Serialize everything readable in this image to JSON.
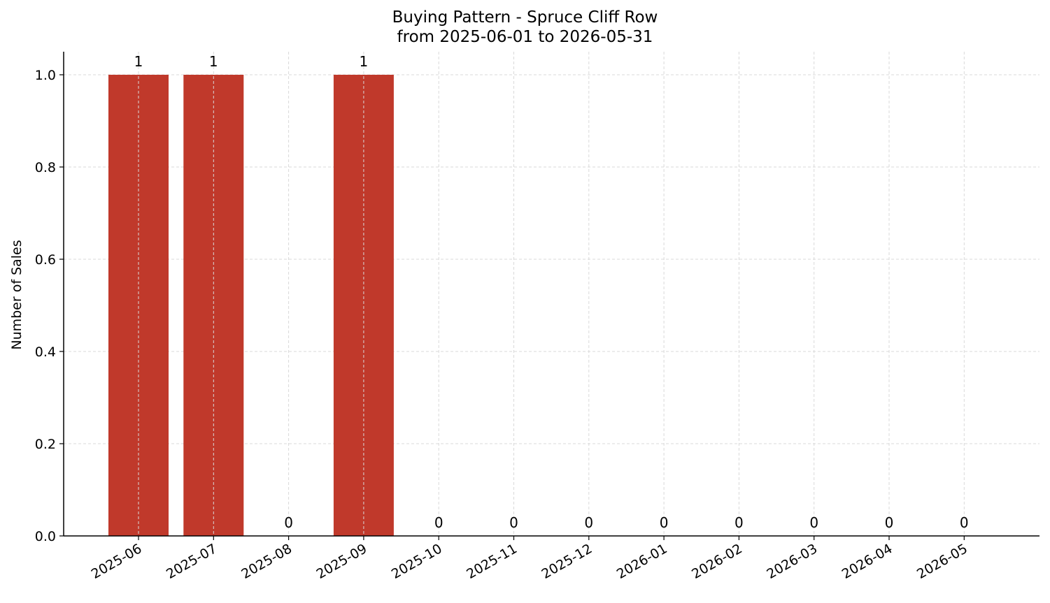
{
  "chart_data": {
    "type": "bar",
    "title": "Buying Pattern - Spruce Cliff Row",
    "subtitle": "from 2025-06-01 to 2026-05-31",
    "xlabel": "",
    "ylabel": "Number of Sales",
    "categories": [
      "2025-06",
      "2025-07",
      "2025-08",
      "2025-09",
      "2025-10",
      "2025-11",
      "2025-12",
      "2026-01",
      "2026-02",
      "2026-03",
      "2026-04",
      "2026-05"
    ],
    "values": [
      1,
      1,
      0,
      1,
      0,
      0,
      0,
      0,
      0,
      0,
      0,
      0
    ],
    "ylim": [
      0,
      1.05
    ],
    "yticks": [
      "0.0",
      "0.2",
      "0.4",
      "0.6",
      "0.8",
      "1.0"
    ],
    "grid": true,
    "bar_color": "#c0392b",
    "grid_color": "#d9d9d9"
  }
}
